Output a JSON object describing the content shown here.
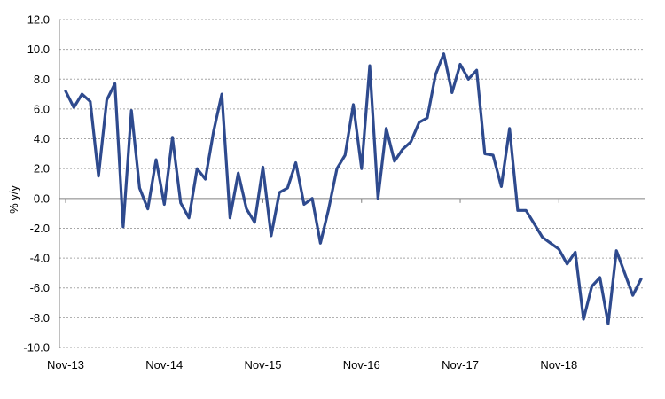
{
  "chart_data": {
    "type": "line",
    "title": "",
    "xlabel": "",
    "ylabel": "% y/y",
    "ylim": [
      -10,
      12
    ],
    "y_ticks": [
      "12.0",
      "10.0",
      "8.0",
      "6.0",
      "4.0",
      "2.0",
      "0.0",
      "-2.0",
      "-4.0",
      "-6.0",
      "-8.0",
      "-10.0"
    ],
    "y_tick_values": [
      12,
      10,
      8,
      6,
      4,
      2,
      0,
      -2,
      -4,
      -6,
      -8,
      -10
    ],
    "x_ticks": [
      "Nov-13",
      "Nov-14",
      "Nov-15",
      "Nov-16",
      "Nov-17",
      "Nov-18"
    ],
    "x_tick_index": [
      0,
      12,
      24,
      36,
      48,
      60
    ],
    "grid": {
      "horizontal": "dotted",
      "vertical": false
    },
    "colors": {
      "line": "#2E4A8E",
      "grid": "#A6A6A6",
      "axis": "#808080"
    },
    "series": [
      {
        "values": [
          7.2,
          6.1,
          7.0,
          6.5,
          1.5,
          6.6,
          7.7,
          -1.9,
          5.9,
          0.7,
          -0.7,
          2.6,
          -0.4,
          4.1,
          -0.3,
          -1.3,
          2.0,
          1.3,
          4.5,
          7.0,
          -1.3,
          1.7,
          -0.7,
          -1.6,
          2.1,
          -2.5,
          0.4,
          0.7,
          2.4,
          -0.4,
          0.0,
          -3.0,
          -0.7,
          2.0,
          2.9,
          6.3,
          2.0,
          8.9,
          0.0,
          4.7,
          2.5,
          3.3,
          3.8,
          5.1,
          5.4,
          8.3,
          9.7,
          7.1,
          9.0,
          8.0,
          8.6,
          3.0,
          2.9,
          0.8,
          4.7,
          -0.8,
          -0.8,
          -1.7,
          -2.6,
          -3.0,
          -3.4,
          -4.4,
          -3.6,
          -8.1,
          -5.9,
          -5.3,
          -8.4,
          -3.5,
          -5.0,
          -6.5,
          -5.4
        ]
      }
    ]
  }
}
